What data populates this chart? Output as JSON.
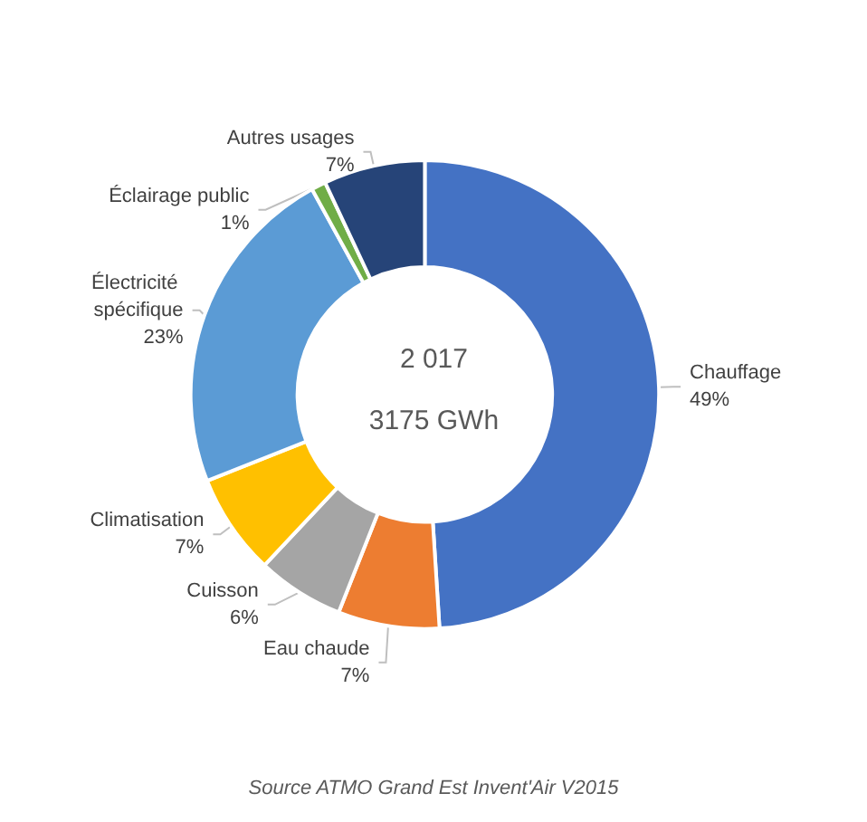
{
  "chart_data": {
    "type": "donut",
    "title": "2 017",
    "subtitle": "3175 GWh",
    "categories": [
      "Chauffage",
      "Eau chaude",
      "Cuisson",
      "Climatisation",
      "Électricité spécifique",
      "Éclairage public",
      "Autres usages"
    ],
    "values": [
      49,
      7,
      6,
      7,
      23,
      1,
      7
    ],
    "value_labels": [
      "49%",
      "7%",
      "6%",
      "7%",
      "23%",
      "1%",
      "7%"
    ],
    "colors": [
      "#4472c4",
      "#ed7d31",
      "#a5a5a5",
      "#ffc000",
      "#5b9bd5",
      "#70ad47",
      "#264478"
    ],
    "legend": false,
    "annotations": [
      "Source ATMO Grand Est Invent'Air V2015"
    ]
  }
}
